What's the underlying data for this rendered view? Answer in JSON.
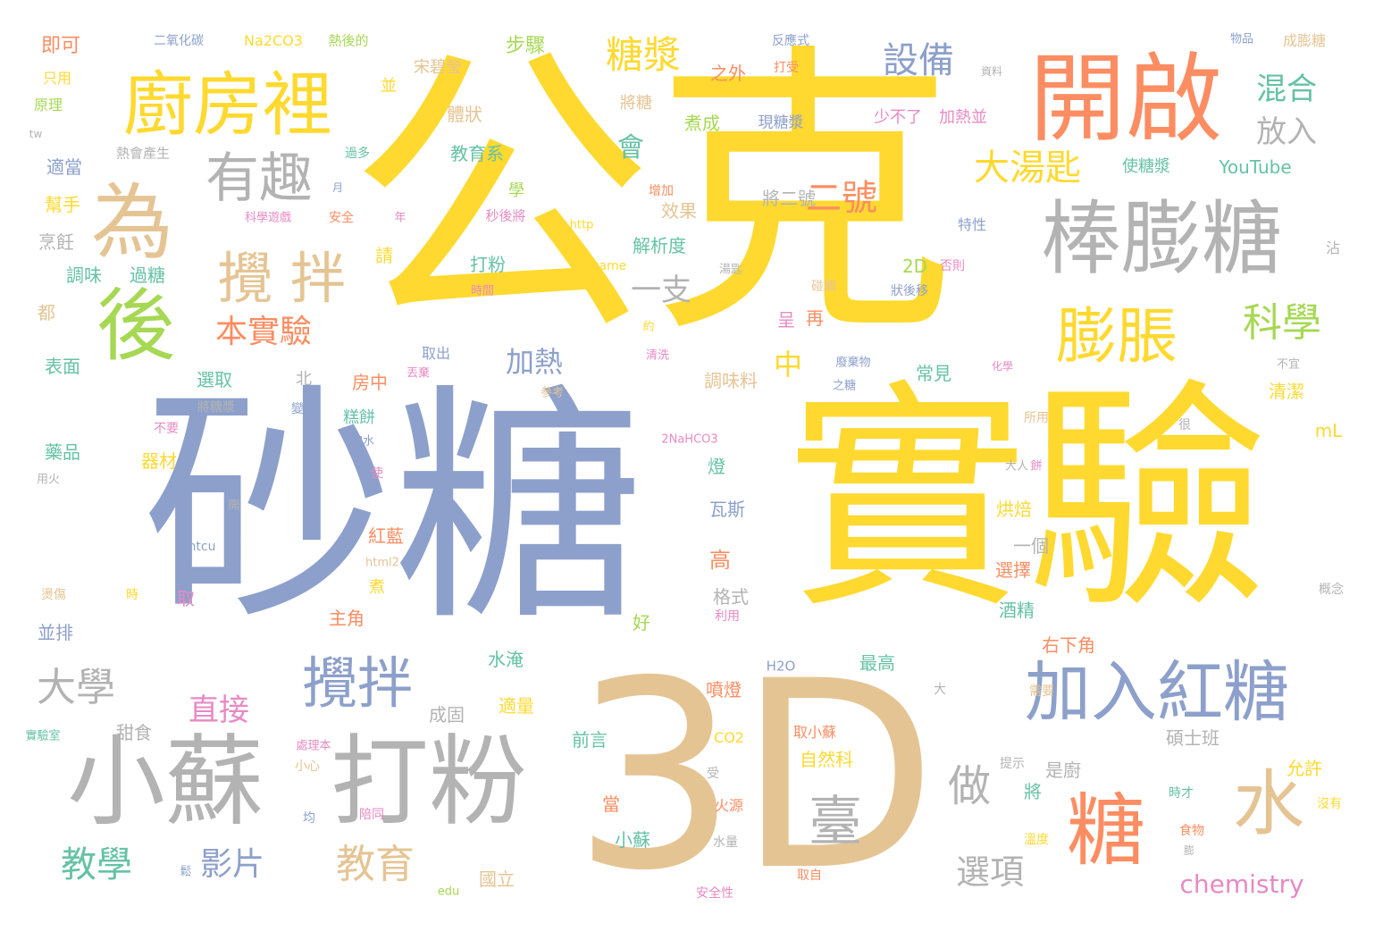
{
  "palette": {
    "yellow": "#ffd92f",
    "blue": "#8da0cb",
    "tan": "#e5c494",
    "gray": "#b3b3b3",
    "orange": "#fc8d62",
    "green": "#66c2a5",
    "lime": "#a6d854",
    "pink": "#e78ac3"
  },
  "words": [
    {
      "text": "公克",
      "color": "yellow"
    },
    {
      "text": "砂糖",
      "color": "blue"
    },
    {
      "text": "實驗",
      "color": "yellow"
    },
    {
      "text": "3D",
      "color": "tan"
    },
    {
      "text": "小蘇",
      "color": "gray"
    },
    {
      "text": "打粉",
      "color": "gray"
    },
    {
      "text": "開啟",
      "color": "orange"
    },
    {
      "text": "廚房裡",
      "color": "yellow"
    },
    {
      "text": "棒膨糖",
      "color": "gray"
    },
    {
      "text": "加入紅糖",
      "color": "blue"
    },
    {
      "text": "為",
      "color": "tan"
    },
    {
      "text": "後",
      "color": "lime"
    },
    {
      "text": "攪拌",
      "color": "blue"
    },
    {
      "text": "攪 拌",
      "color": "tan"
    },
    {
      "text": "有趣",
      "color": "gray"
    },
    {
      "text": "膨脹",
      "color": "yellow"
    },
    {
      "text": "糖",
      "color": "orange"
    },
    {
      "text": "水",
      "color": "tan"
    },
    {
      "text": "臺",
      "color": "gray"
    },
    {
      "text": "科學",
      "color": "lime"
    },
    {
      "text": "設備",
      "color": "blue"
    },
    {
      "text": "糖漿",
      "color": "yellow"
    },
    {
      "text": "混合",
      "color": "green"
    },
    {
      "text": "放入",
      "color": "gray"
    },
    {
      "text": "大湯匙",
      "color": "yellow"
    },
    {
      "text": "二號",
      "color": "orange"
    },
    {
      "text": "本實驗",
      "color": "orange"
    },
    {
      "text": "大學",
      "color": "gray"
    },
    {
      "text": "教學",
      "color": "green"
    },
    {
      "text": "影片",
      "color": "blue"
    },
    {
      "text": "教育",
      "color": "tan"
    },
    {
      "text": "做",
      "color": "gray"
    },
    {
      "text": "選項",
      "color": "gray"
    },
    {
      "text": "直接",
      "color": "pink"
    },
    {
      "text": "加熱",
      "color": "blue"
    },
    {
      "text": "中",
      "color": "yellow"
    },
    {
      "text": "一支",
      "color": "gray"
    },
    {
      "text": "會",
      "color": "green"
    },
    {
      "text": "chemistry",
      "color": "pink"
    },
    {
      "text": "YouTube",
      "color": "green"
    },
    {
      "text": "步驟",
      "color": "lime"
    },
    {
      "text": "即可",
      "color": "orange"
    },
    {
      "text": "二氧化碳",
      "color": "blue"
    },
    {
      "text": "Na2CO3",
      "color": "yellow"
    },
    {
      "text": "熱後的",
      "color": "lime"
    },
    {
      "text": "之外",
      "color": "orange"
    },
    {
      "text": "反應式",
      "color": "blue"
    },
    {
      "text": "物品",
      "color": "blue"
    },
    {
      "text": "成膨糖",
      "color": "tan"
    },
    {
      "text": "只用",
      "color": "yellow"
    },
    {
      "text": "原理",
      "color": "lime"
    },
    {
      "text": "tw",
      "color": "gray"
    },
    {
      "text": "宋碧瑩",
      "color": "tan"
    },
    {
      "text": "並",
      "color": "yellow"
    },
    {
      "text": "體狀",
      "color": "tan"
    },
    {
      "text": "將糖",
      "color": "tan"
    },
    {
      "text": "打受",
      "color": "orange"
    },
    {
      "text": "資料",
      "color": "gray"
    },
    {
      "text": "煮成",
      "color": "lime"
    },
    {
      "text": "現糖漿",
      "color": "blue"
    },
    {
      "text": "少不了",
      "color": "pink"
    },
    {
      "text": "加熱並",
      "color": "pink"
    },
    {
      "text": "使糖漿",
      "color": "green"
    },
    {
      "text": "熱會產生",
      "color": "gray"
    },
    {
      "text": "過多",
      "color": "green"
    },
    {
      "text": "教育系",
      "color": "green"
    },
    {
      "text": "適當",
      "color": "blue"
    },
    {
      "text": "幫手",
      "color": "yellow"
    },
    {
      "text": "烹飪",
      "color": "gray"
    },
    {
      "text": "調味",
      "color": "green"
    },
    {
      "text": "過糖",
      "color": "green"
    },
    {
      "text": "都",
      "color": "tan"
    },
    {
      "text": "表面",
      "color": "green"
    },
    {
      "text": "月",
      "color": "blue"
    },
    {
      "text": "科學遊戲",
      "color": "pink"
    },
    {
      "text": "安全",
      "color": "orange"
    },
    {
      "text": "學",
      "color": "lime"
    },
    {
      "text": "年",
      "color": "pink"
    },
    {
      "text": "秒後將",
      "color": "pink"
    },
    {
      "text": "增加",
      "color": "orange"
    },
    {
      "text": "http",
      "color": "yellow"
    },
    {
      "text": "將二號",
      "color": "gray"
    },
    {
      "text": "效果",
      "color": "tan"
    },
    {
      "text": "特性",
      "color": "blue"
    },
    {
      "text": "請",
      "color": "yellow"
    },
    {
      "text": "解析度",
      "color": "green"
    },
    {
      "text": "scigame",
      "color": "yellow"
    },
    {
      "text": "打粉",
      "color": "green"
    },
    {
      "text": "時間",
      "color": "pink"
    },
    {
      "text": "湯匙",
      "color": "gray"
    },
    {
      "text": "2D",
      "color": "lime"
    },
    {
      "text": "否則",
      "color": "pink"
    },
    {
      "text": "碰觸",
      "color": "tan"
    },
    {
      "text": "狀後移",
      "color": "blue"
    },
    {
      "text": "沾",
      "color": "gray"
    },
    {
      "text": "呈",
      "color": "pink"
    },
    {
      "text": "再",
      "color": "orange"
    },
    {
      "text": "約",
      "color": "yellow"
    },
    {
      "text": "取出",
      "color": "blue"
    },
    {
      "text": "北",
      "color": "gray"
    },
    {
      "text": "房中",
      "color": "orange"
    },
    {
      "text": "丟棄",
      "color": "pink"
    },
    {
      "text": "選取",
      "color": "green"
    },
    {
      "text": "清洗",
      "color": "pink"
    },
    {
      "text": "調味料",
      "color": "tan"
    },
    {
      "text": "常見",
      "color": "green"
    },
    {
      "text": "廢棄物",
      "color": "blue"
    },
    {
      "text": "化學",
      "color": "pink"
    },
    {
      "text": "不宜",
      "color": "gray"
    },
    {
      "text": "之糖",
      "color": "blue"
    },
    {
      "text": "清潔",
      "color": "yellow"
    },
    {
      "text": "參考",
      "color": "tan"
    },
    {
      "text": "將糖漿",
      "color": "gray"
    },
    {
      "text": "變成",
      "color": "blue"
    },
    {
      "text": "糕餅",
      "color": "green"
    },
    {
      "text": "所用",
      "color": "tan"
    },
    {
      "text": "不要",
      "color": "pink"
    },
    {
      "text": "加水",
      "color": "blue"
    },
    {
      "text": "mL",
      "color": "yellow"
    },
    {
      "text": "藥品",
      "color": "green"
    },
    {
      "text": "器材",
      "color": "yellow"
    },
    {
      "text": "2NaHCO3",
      "color": "pink"
    },
    {
      "text": "很",
      "color": "gray"
    },
    {
      "text": "燈",
      "color": "green"
    },
    {
      "text": "用火",
      "color": "gray"
    },
    {
      "text": "使",
      "color": "pink"
    },
    {
      "text": "大人",
      "color": "gray"
    },
    {
      "text": "餅",
      "color": "pink"
    },
    {
      "text": "瓦斯",
      "color": "blue"
    },
    {
      "text": "烘焙",
      "color": "yellow"
    },
    {
      "text": "開",
      "color": "gray"
    },
    {
      "text": "紅藍",
      "color": "orange"
    },
    {
      "text": "一個",
      "color": "gray"
    },
    {
      "text": "ntcu",
      "color": "blue"
    },
    {
      "text": "高",
      "color": "orange"
    },
    {
      "text": "選擇",
      "color": "orange"
    },
    {
      "text": "html2",
      "color": "tan"
    },
    {
      "text": "取",
      "color": "pink"
    },
    {
      "text": "格式",
      "color": "gray"
    },
    {
      "text": "煮",
      "color": "yellow"
    },
    {
      "text": "燙傷",
      "color": "tan"
    },
    {
      "text": "時",
      "color": "yellow"
    },
    {
      "text": "酒精",
      "color": "green"
    },
    {
      "text": "概念",
      "color": "gray"
    },
    {
      "text": "主角",
      "color": "orange"
    },
    {
      "text": "利用",
      "color": "pink"
    },
    {
      "text": "好",
      "color": "lime"
    },
    {
      "text": "並排",
      "color": "blue"
    },
    {
      "text": "右下角",
      "color": "orange"
    },
    {
      "text": "最高",
      "color": "green"
    },
    {
      "text": "水淹",
      "color": "green"
    },
    {
      "text": "H2O",
      "color": "blue"
    },
    {
      "text": "噴燈",
      "color": "orange"
    },
    {
      "text": "大",
      "color": "gray"
    },
    {
      "text": "需要",
      "color": "tan"
    },
    {
      "text": "成固",
      "color": "gray"
    },
    {
      "text": "適量",
      "color": "yellow"
    },
    {
      "text": "甜食",
      "color": "gray"
    },
    {
      "text": "前言",
      "color": "green"
    },
    {
      "text": "取小蘇",
      "color": "orange"
    },
    {
      "text": "實驗室",
      "color": "green"
    },
    {
      "text": "處理本",
      "color": "pink"
    },
    {
      "text": "CO2",
      "color": "yellow"
    },
    {
      "text": "自然科",
      "color": "yellow"
    },
    {
      "text": "是廚",
      "color": "gray"
    },
    {
      "text": "碩士班",
      "color": "gray"
    },
    {
      "text": "提示",
      "color": "gray"
    },
    {
      "text": "允許",
      "color": "yellow"
    },
    {
      "text": "小心",
      "color": "tan"
    },
    {
      "text": "受",
      "color": "gray"
    },
    {
      "text": "將",
      "color": "green"
    },
    {
      "text": "時才",
      "color": "green"
    },
    {
      "text": "均",
      "color": "blue"
    },
    {
      "text": "陪同",
      "color": "pink"
    },
    {
      "text": "當",
      "color": "orange"
    },
    {
      "text": "火源",
      "color": "orange"
    },
    {
      "text": "沒有",
      "color": "yellow"
    },
    {
      "text": "小蘇",
      "color": "green"
    },
    {
      "text": "食物",
      "color": "orange"
    },
    {
      "text": "水量",
      "color": "gray"
    },
    {
      "text": "溫度",
      "color": "yellow"
    },
    {
      "text": "膨",
      "color": "gray"
    },
    {
      "text": "鬆",
      "color": "blue"
    },
    {
      "text": "edu",
      "color": "lime"
    },
    {
      "text": "國立",
      "color": "tan"
    },
    {
      "text": "取自",
      "color": "orange"
    },
    {
      "text": "安全性",
      "color": "pink"
    }
  ]
}
